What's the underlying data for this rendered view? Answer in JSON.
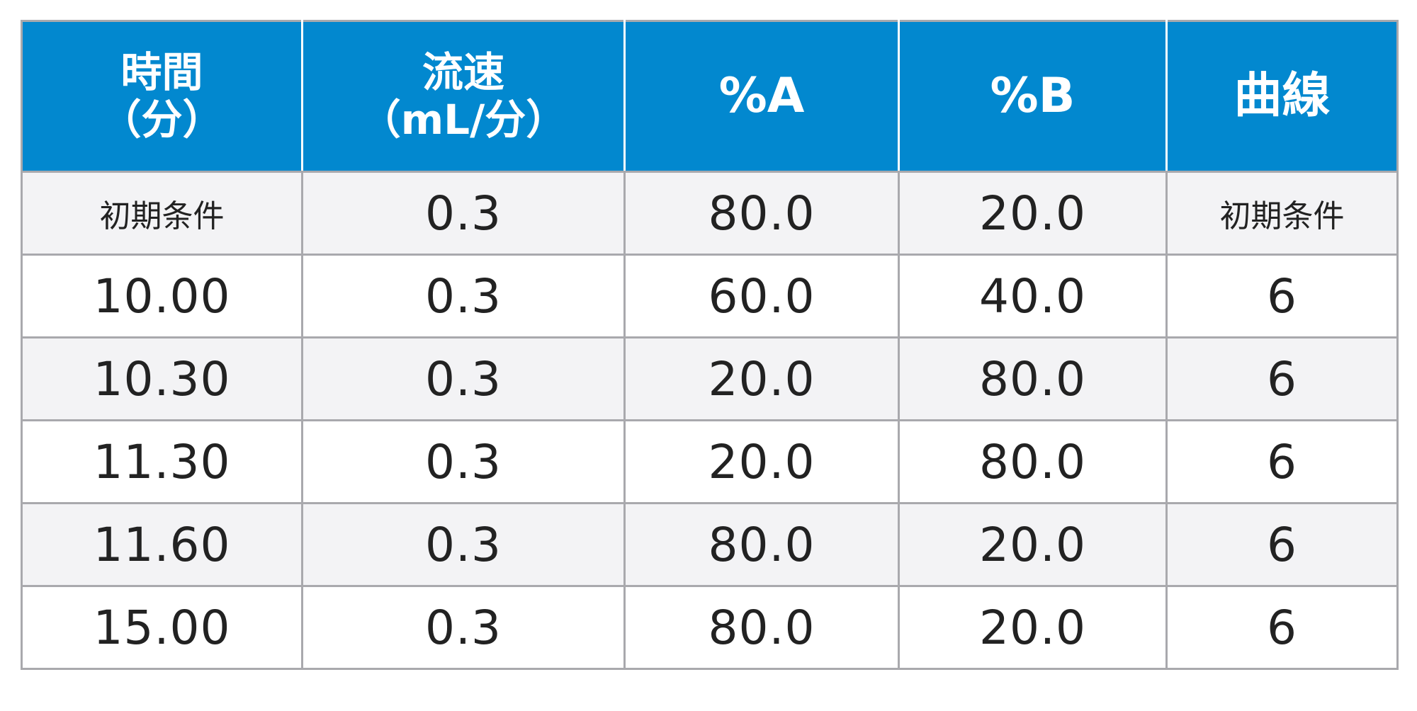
{
  "table": {
    "headers": [
      {
        "lines": [
          "時間",
          "（分）"
        ]
      },
      {
        "lines": [
          "流速",
          "（mL/分）"
        ]
      },
      {
        "lines": [
          "%A"
        ]
      },
      {
        "lines": [
          "%B"
        ]
      },
      {
        "lines": [
          "曲線"
        ]
      }
    ],
    "rows": [
      [
        "初期条件",
        "0.3",
        "80.0",
        "20.0",
        "初期条件"
      ],
      [
        "10.00",
        "0.3",
        "60.0",
        "40.0",
        "6"
      ],
      [
        "10.30",
        "0.3",
        "20.0",
        "80.0",
        "6"
      ],
      [
        "11.30",
        "0.3",
        "20.0",
        "80.0",
        "6"
      ],
      [
        "11.60",
        "0.3",
        "80.0",
        "20.0",
        "6"
      ],
      [
        "15.00",
        "0.3",
        "80.0",
        "20.0",
        "6"
      ]
    ]
  },
  "colors": {
    "header_bg": "#0288cf",
    "header_text": "#ffffff",
    "row_alt_bg": "#f3f3f5",
    "border": "#a9a9ad",
    "body_text": "#222222"
  }
}
